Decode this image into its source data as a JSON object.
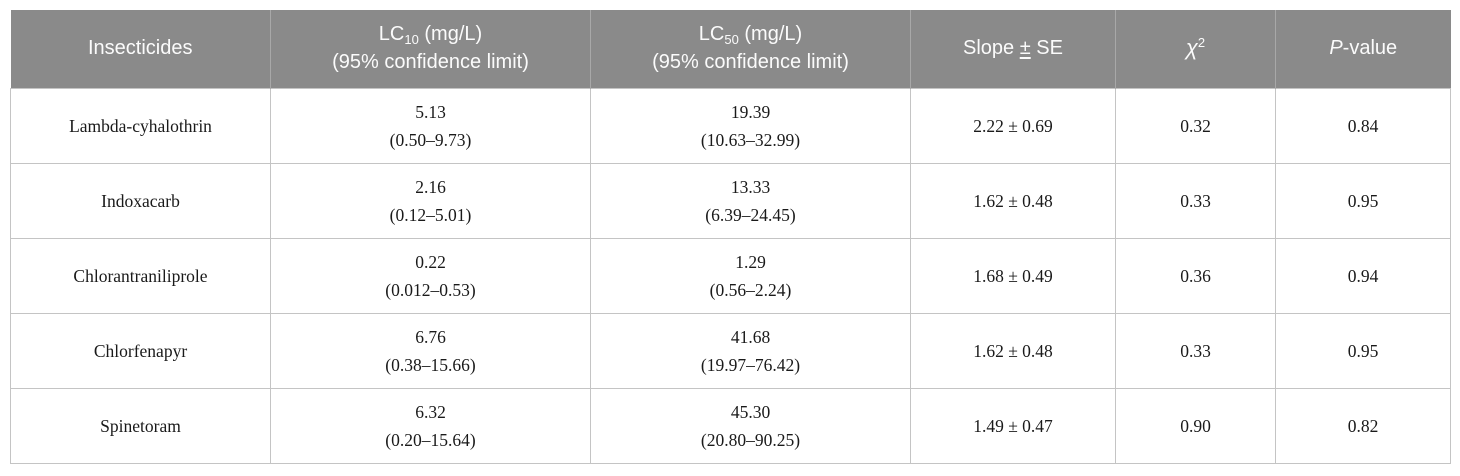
{
  "theme": {
    "header-bg": "#8a8a8a",
    "header-text": "#fbfbfb",
    "header-divider": "#a8a8a8",
    "border": "#c4c4c4",
    "body-text": "#1a1a1a",
    "page-bg": "#ffffff"
  },
  "columns": {
    "insecticides": "Insecticides",
    "lc10": {
      "prefix": "LC",
      "sub": "10",
      "unit": " (mg/L)",
      "line2": "(95% confidence limit)"
    },
    "lc50": {
      "prefix": "LC",
      "sub": "50",
      "unit": " (mg/L)",
      "line2": "(95% confidence limit)"
    },
    "slope": {
      "prefix": "Slope ",
      "pm": "±",
      "suffix": " SE"
    },
    "chi2": {
      "symbol": "χ",
      "sup": "2"
    },
    "pvalue": {
      "italic": "P",
      "suffix": "-value"
    }
  },
  "rows": [
    {
      "name": "Lambda-cyhalothrin",
      "lc10": "5.13",
      "lc10_ci": "(0.50–9.73)",
      "lc50": "19.39",
      "lc50_ci": "(10.63–32.99)",
      "slope_se": "2.22 ± 0.69",
      "chi2": "0.32",
      "p": "0.84"
    },
    {
      "name": "Indoxacarb",
      "lc10": "2.16",
      "lc10_ci": "(0.12–5.01)",
      "lc50": "13.33",
      "lc50_ci": "(6.39–24.45)",
      "slope_se": "1.62 ± 0.48",
      "chi2": "0.33",
      "p": "0.95"
    },
    {
      "name": "Chlorantraniliprole",
      "lc10": "0.22",
      "lc10_ci": "(0.012–0.53)",
      "lc50": "1.29",
      "lc50_ci": "(0.56–2.24)",
      "slope_se": "1.68 ± 0.49",
      "chi2": "0.36",
      "p": "0.94"
    },
    {
      "name": "Chlorfenapyr",
      "lc10": "6.76",
      "lc10_ci": "(0.38–15.66)",
      "lc50": "41.68",
      "lc50_ci": "(19.97–76.42)",
      "slope_se": "1.62 ± 0.48",
      "chi2": "0.33",
      "p": "0.95"
    },
    {
      "name": "Spinetoram",
      "lc10": "6.32",
      "lc10_ci": "(0.20–15.64)",
      "lc50": "45.30",
      "lc50_ci": "(20.80–90.25)",
      "slope_se": "1.49 ± 0.47",
      "chi2": "0.90",
      "p": "0.82"
    }
  ],
  "chart_data": {
    "type": "table",
    "title": "Insecticide toxicity bioassay results",
    "columns": [
      "Insecticides",
      "LC10 (mg/L) (95% confidence limit)",
      "LC50 (mg/L) (95% confidence limit)",
      "Slope ± SE",
      "χ2",
      "P-value"
    ],
    "rows": [
      [
        "Lambda-cyhalothrin",
        "5.13 (0.50–9.73)",
        "19.39 (10.63–32.99)",
        "2.22 ± 0.69",
        "0.32",
        "0.84"
      ],
      [
        "Indoxacarb",
        "2.16 (0.12–5.01)",
        "13.33 (6.39–24.45)",
        "1.62 ± 0.48",
        "0.33",
        "0.95"
      ],
      [
        "Chlorantraniliprole",
        "0.22 (0.012–0.53)",
        "1.29 (0.56–2.24)",
        "1.68 ± 0.49",
        "0.36",
        "0.94"
      ],
      [
        "Chlorfenapyr",
        "6.76 (0.38–15.66)",
        "41.68 (19.97–76.42)",
        "1.62 ± 0.48",
        "0.33",
        "0.95"
      ],
      [
        "Spinetoram",
        "6.32 (0.20–15.64)",
        "45.30 (20.80–90.25)",
        "1.49 ± 0.47",
        "0.90",
        "0.82"
      ]
    ]
  }
}
